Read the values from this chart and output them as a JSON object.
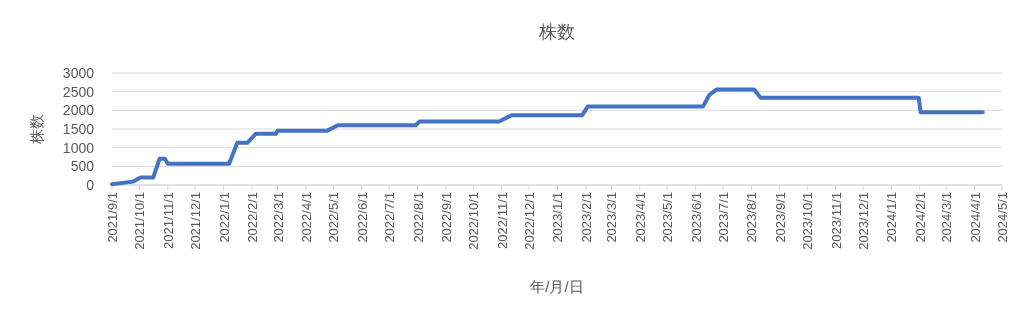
{
  "chart_data": {
    "type": "line",
    "title": "株数",
    "xlabel": "年/月/日",
    "ylabel": "株数",
    "x": [
      "2021-09-01",
      "2021-09-24",
      "2021-10-02",
      "2021-10-16",
      "2021-10-23",
      "2021-10-29",
      "2021-11-01",
      "2022-01-07",
      "2022-01-16",
      "2022-01-27",
      "2022-02-05",
      "2022-02-27",
      "2022-03-01",
      "2022-04-24",
      "2022-05-06",
      "2022-07-30",
      "2022-08-03",
      "2022-10-29",
      "2022-11-12",
      "2023-01-28",
      "2023-02-03",
      "2023-06-09",
      "2023-06-16",
      "2023-06-24",
      "2023-08-04",
      "2023-08-11",
      "2024-01-31",
      "2024-02-02",
      "2024-04-10"
    ],
    "series": [
      {
        "color": "#4472c4",
        "values": [
          20,
          90,
          200,
          200,
          700,
          700,
          570,
          570,
          1130,
          1130,
          1370,
          1370,
          1450,
          1450,
          1600,
          1600,
          1700,
          1700,
          1870,
          1870,
          2100,
          2100,
          2410,
          2560,
          2560,
          2340,
          2340,
          1950,
          1950
        ]
      }
    ],
    "ylim": [
      0,
      3000
    ],
    "yticks": [
      0,
      500,
      1000,
      1500,
      2000,
      2500,
      3000
    ],
    "xlim": [
      "2021-09-01",
      "2024-05-01"
    ],
    "xticks": [
      {
        "value": "2021-09-01",
        "label": "2021/9/1"
      },
      {
        "value": "2021-10-01",
        "label": "2021/10/1"
      },
      {
        "value": "2021-11-01",
        "label": "2021/11/1"
      },
      {
        "value": "2021-12-01",
        "label": "2021/12/1"
      },
      {
        "value": "2022-01-01",
        "label": "2022/1/1"
      },
      {
        "value": "2022-02-01",
        "label": "2022/2/1"
      },
      {
        "value": "2022-03-01",
        "label": "2022/3/1"
      },
      {
        "value": "2022-04-01",
        "label": "2022/4/1"
      },
      {
        "value": "2022-05-01",
        "label": "2022/5/1"
      },
      {
        "value": "2022-06-01",
        "label": "2022/6/1"
      },
      {
        "value": "2022-07-01",
        "label": "2022/7/1"
      },
      {
        "value": "2022-08-01",
        "label": "2022/8/1"
      },
      {
        "value": "2022-09-01",
        "label": "2022/9/1"
      },
      {
        "value": "2022-10-01",
        "label": "2022/10/1"
      },
      {
        "value": "2022-11-01",
        "label": "2022/11/1"
      },
      {
        "value": "2022-12-01",
        "label": "2022/12/1"
      },
      {
        "value": "2023-01-01",
        "label": "2023/1/1"
      },
      {
        "value": "2023-02-01",
        "label": "2023/2/1"
      },
      {
        "value": "2023-03-01",
        "label": "2023/3/1"
      },
      {
        "value": "2023-04-01",
        "label": "2023/4/1"
      },
      {
        "value": "2023-05-01",
        "label": "2023/5/1"
      },
      {
        "value": "2023-06-01",
        "label": "2023/6/1"
      },
      {
        "value": "2023-07-01",
        "label": "2023/7/1"
      },
      {
        "value": "2023-08-01",
        "label": "2023/8/1"
      },
      {
        "value": "2023-09-01",
        "label": "2023/9/1"
      },
      {
        "value": "2023-10-01",
        "label": "2023/10/1"
      },
      {
        "value": "2023-11-01",
        "label": "2023/11/1"
      },
      {
        "value": "2023-12-01",
        "label": "2023/12/1"
      },
      {
        "value": "2024-01-01",
        "label": "2024/1/1"
      },
      {
        "value": "2024-02-01",
        "label": "2024/2/1"
      },
      {
        "value": "2024-03-01",
        "label": "2024/3/1"
      },
      {
        "value": "2024-04-01",
        "label": "2024/4/1"
      },
      {
        "value": "2024-05-01",
        "label": "2024/5/1"
      }
    ],
    "grid": "y",
    "marker": "none",
    "line_style": "solid"
  }
}
